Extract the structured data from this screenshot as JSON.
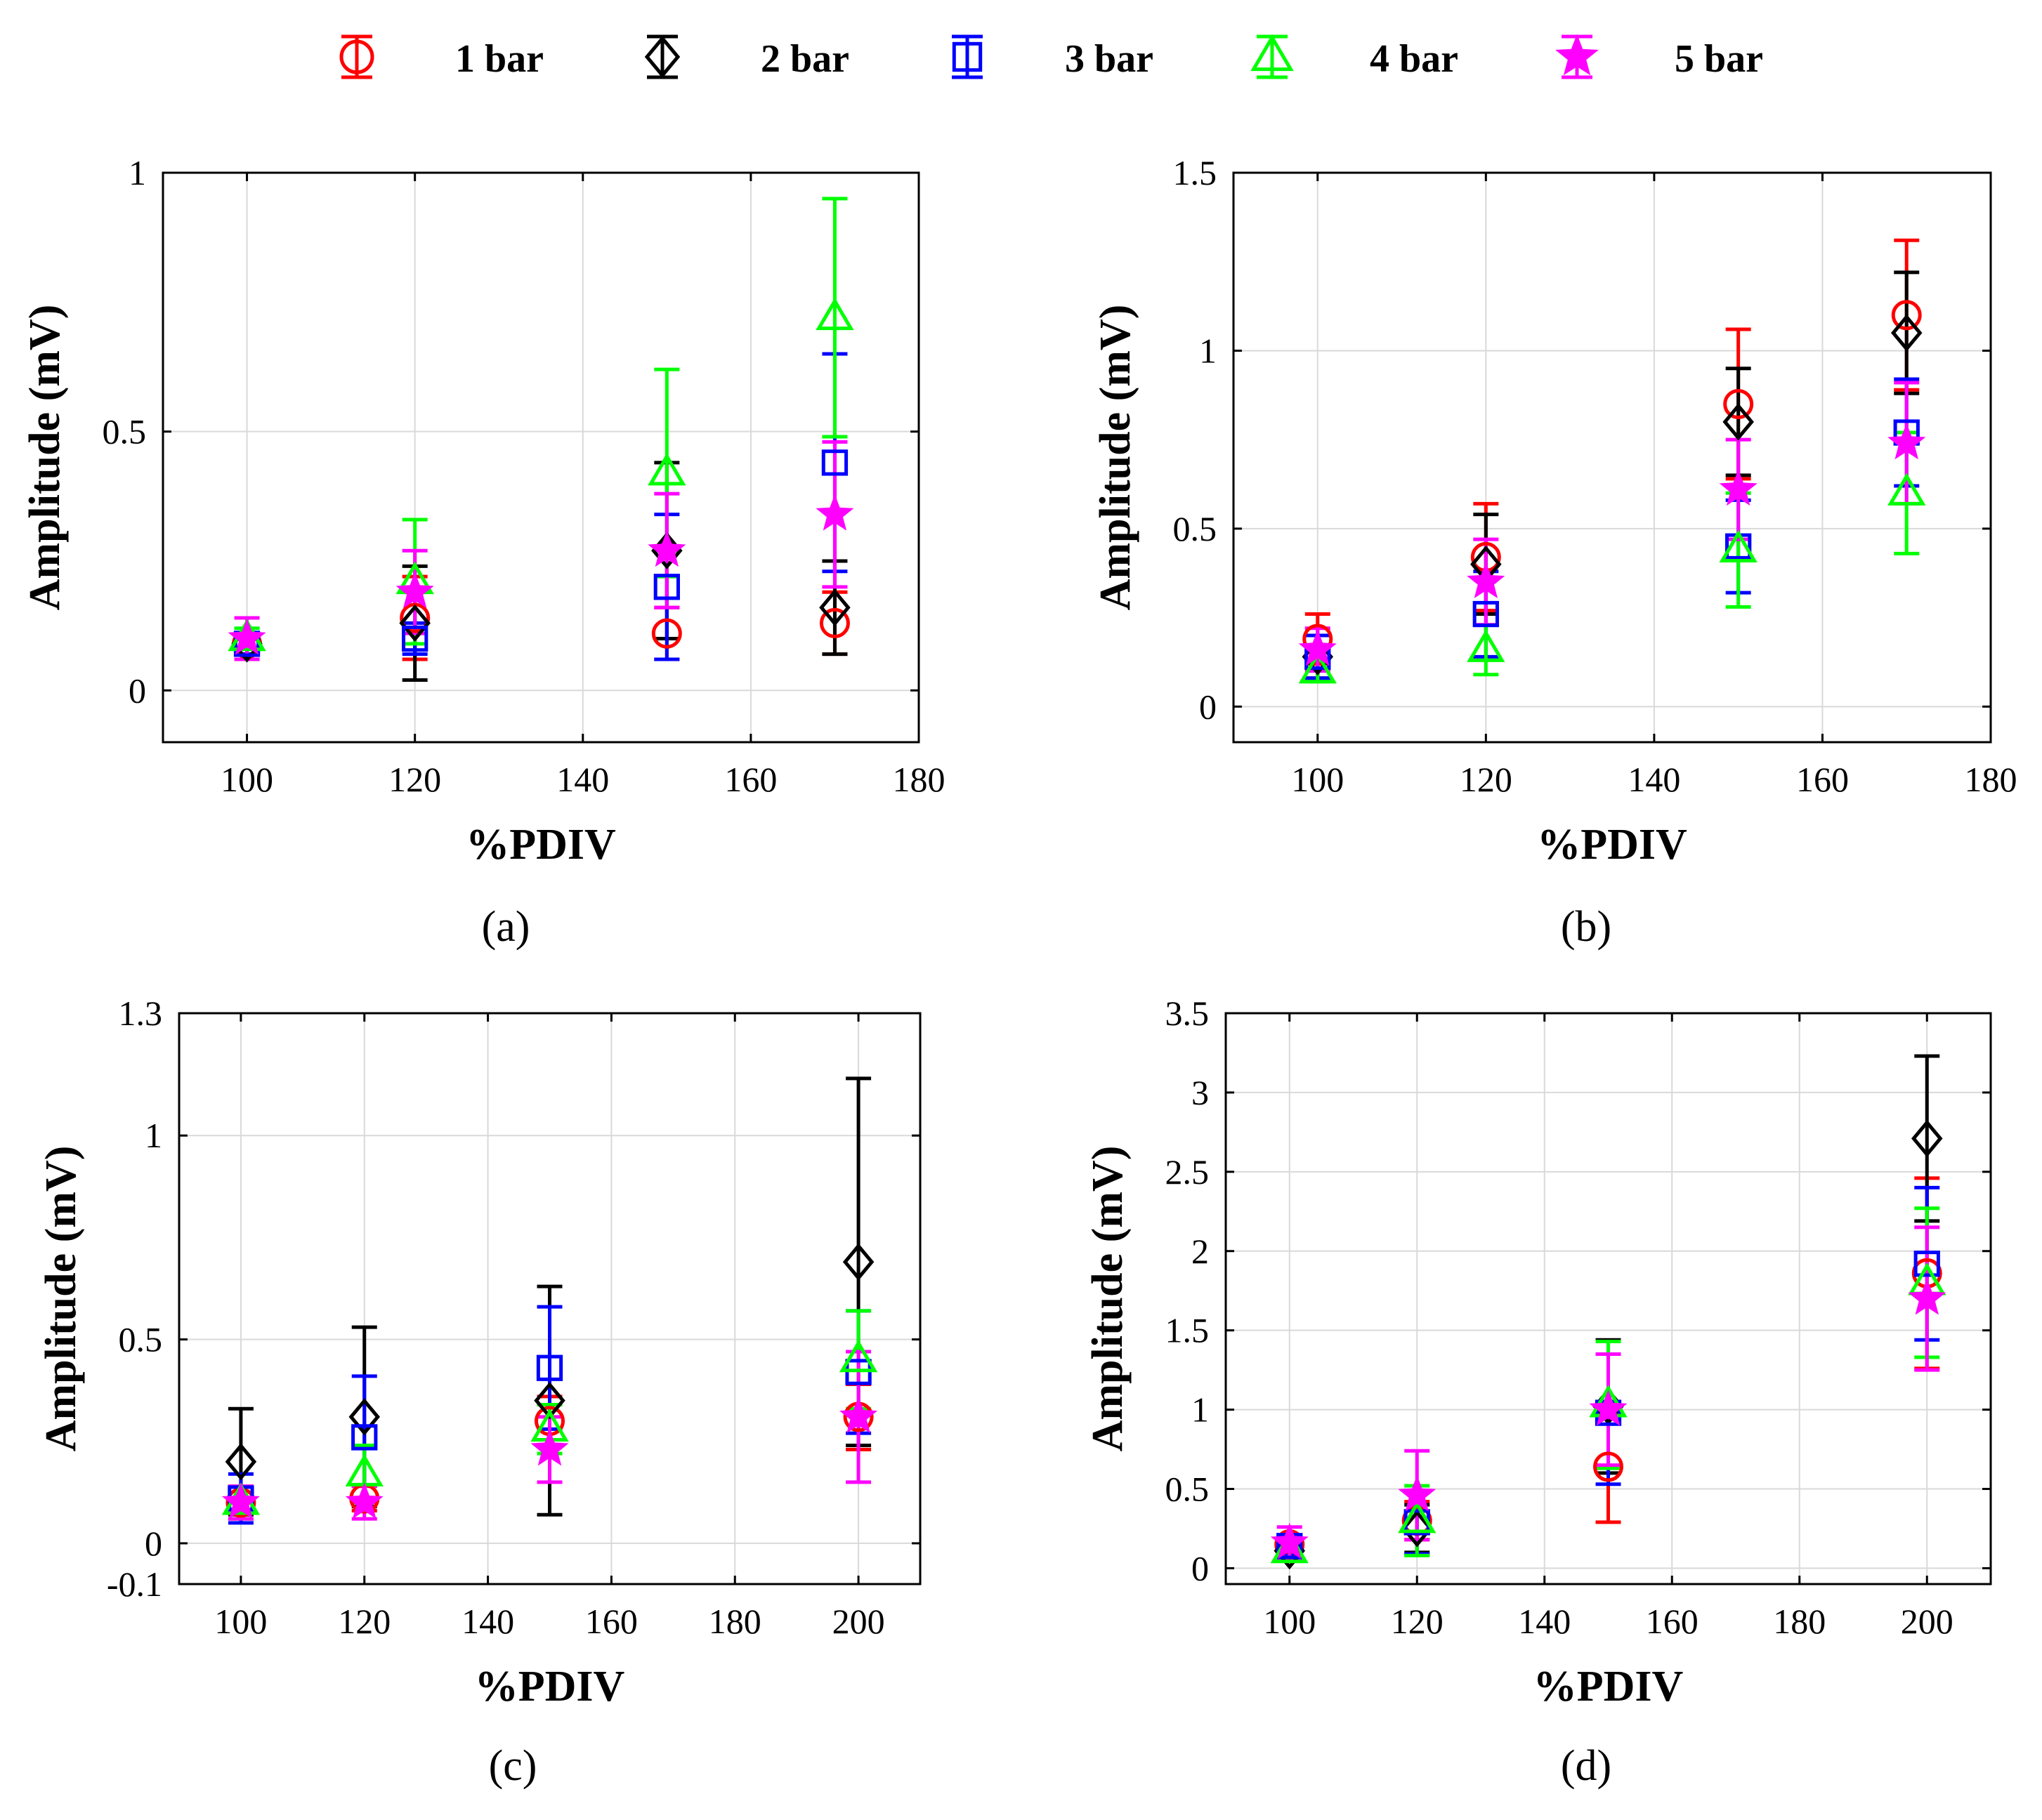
{
  "legend": [
    {
      "name": "1 bar",
      "color": "#ff0000",
      "marker": "circle"
    },
    {
      "name": "2 bar",
      "color": "#000000",
      "marker": "diamond"
    },
    {
      "name": "3 bar",
      "color": "#0000ff",
      "marker": "square"
    },
    {
      "name": "4 bar",
      "color": "#00ff00",
      "marker": "triangle"
    },
    {
      "name": "5 bar",
      "color": "#ff00ff",
      "marker": "star"
    }
  ],
  "chart_data": [
    {
      "type": "scatter",
      "panel_label": "(a)",
      "xlabel": "%PDIV",
      "ylabel": "Amplitude (mV)",
      "xlim": [
        90,
        180
      ],
      "ylim": [
        -0.1,
        1
      ],
      "xticks": [
        100,
        120,
        140,
        160,
        180
      ],
      "xtick_labels": [
        "100",
        "120",
        "140",
        "160",
        "180"
      ],
      "yticks": [
        0,
        0.5,
        1
      ],
      "ytick_labels": [
        "0",
        "0.5",
        "1"
      ],
      "grid": true,
      "error_bars": true,
      "series": [
        {
          "name": "1 bar",
          "x": [
            100,
            120,
            150,
            170
          ],
          "y": [
            0.09,
            0.14,
            0.11,
            0.13
          ],
          "err": [
            0.02,
            0.08,
            0.05,
            0.06
          ]
        },
        {
          "name": "2 bar",
          "x": [
            100,
            120,
            150,
            170
          ],
          "y": [
            0.09,
            0.13,
            0.27,
            0.16
          ],
          "err": [
            0.02,
            0.11,
            0.17,
            0.09
          ]
        },
        {
          "name": "3 bar",
          "x": [
            100,
            120,
            150,
            170
          ],
          "y": [
            0.09,
            0.1,
            0.2,
            0.44
          ],
          "err": [
            0.02,
            0.03,
            0.14,
            0.21
          ]
        },
        {
          "name": "4 bar",
          "x": [
            100,
            120,
            150,
            170
          ],
          "y": [
            0.1,
            0.21,
            0.42,
            0.72
          ],
          "err": [
            0.02,
            0.12,
            0.2,
            0.23
          ]
        },
        {
          "name": "5 bar",
          "x": [
            100,
            120,
            150,
            170
          ],
          "y": [
            0.1,
            0.19,
            0.27,
            0.34
          ],
          "err": [
            0.04,
            0.08,
            0.11,
            0.14
          ]
        }
      ]
    },
    {
      "type": "scatter",
      "panel_label": "(b)",
      "xlabel": "%PDIV",
      "ylabel": "Amplitude (mV)",
      "xlim": [
        90,
        180
      ],
      "ylim": [
        -0.1,
        1.5
      ],
      "xticks": [
        100,
        120,
        140,
        160,
        180
      ],
      "xtick_labels": [
        "100",
        "120",
        "140",
        "160",
        "180"
      ],
      "yticks": [
        0,
        0.5,
        1,
        1.5
      ],
      "ytick_labels": [
        "0",
        "0.5",
        "1",
        "1.5"
      ],
      "grid": true,
      "error_bars": true,
      "series": [
        {
          "name": "1 bar",
          "x": [
            100,
            120,
            150,
            170
          ],
          "y": [
            0.19,
            0.42,
            0.85,
            1.1
          ],
          "err": [
            0.07,
            0.15,
            0.21,
            0.21
          ]
        },
        {
          "name": "2 bar",
          "x": [
            100,
            120,
            150,
            170
          ],
          "y": [
            0.14,
            0.4,
            0.8,
            1.05
          ],
          "err": [
            0.06,
            0.14,
            0.15,
            0.17
          ]
        },
        {
          "name": "3 bar",
          "x": [
            100,
            120,
            150,
            170
          ],
          "y": [
            0.14,
            0.26,
            0.45,
            0.77
          ],
          "err": [
            0.06,
            0.12,
            0.13,
            0.15
          ]
        },
        {
          "name": "4 bar",
          "x": [
            100,
            120,
            150,
            170
          ],
          "y": [
            0.1,
            0.16,
            0.44,
            0.6
          ],
          "err": [
            0.03,
            0.07,
            0.16,
            0.17
          ]
        },
        {
          "name": "5 bar",
          "x": [
            100,
            120,
            150,
            170
          ],
          "y": [
            0.16,
            0.35,
            0.61,
            0.74
          ],
          "err": [
            0.06,
            0.12,
            0.14,
            0.17
          ]
        }
      ]
    },
    {
      "type": "scatter",
      "panel_label": "(c)",
      "xlabel": "%PDIV",
      "ylabel": "Amplitude (mV)",
      "xlim": [
        90,
        210
      ],
      "ylim": [
        -0.1,
        1.3
      ],
      "xticks": [
        100,
        120,
        140,
        160,
        180,
        200
      ],
      "xtick_labels": [
        "100",
        "120",
        "140",
        "160",
        "180",
        "200"
      ],
      "yticks": [
        -0.1,
        0,
        0.5,
        1,
        1.3
      ],
      "ytick_labels": [
        "-0.1",
        "0",
        "0.5",
        "1",
        "1.3"
      ],
      "grid": true,
      "error_bars": true,
      "series": [
        {
          "name": "1 bar",
          "x": [
            100,
            120,
            150,
            200
          ],
          "y": [
            0.1,
            0.11,
            0.3,
            0.31
          ],
          "err": [
            0.04,
            0.03,
            0.06,
            0.08
          ]
        },
        {
          "name": "2 bar",
          "x": [
            100,
            120,
            150,
            200
          ],
          "y": [
            0.2,
            0.31,
            0.35,
            0.69
          ],
          "err": [
            0.13,
            0.22,
            0.28,
            0.45
          ]
        },
        {
          "name": "3 bar",
          "x": [
            100,
            120,
            150,
            200
          ],
          "y": [
            0.11,
            0.26,
            0.43,
            0.42
          ],
          "err": [
            0.06,
            0.15,
            0.15,
            0.15
          ]
        },
        {
          "name": "4 bar",
          "x": [
            100,
            120,
            150,
            200
          ],
          "y": [
            0.1,
            0.17,
            0.28,
            0.45
          ],
          "err": [
            0.04,
            0.07,
            0.06,
            0.12
          ]
        },
        {
          "name": "5 bar",
          "x": [
            100,
            120,
            150,
            200
          ],
          "y": [
            0.1,
            0.1,
            0.23,
            0.31
          ],
          "err": [
            0.04,
            0.04,
            0.08,
            0.16
          ]
        }
      ]
    },
    {
      "type": "scatter",
      "panel_label": "(d)",
      "xlabel": "%PDIV",
      "ylabel": "Amplitude (mV)",
      "xlim": [
        90,
        210
      ],
      "ylim": [
        -0.1,
        3.5
      ],
      "xticks": [
        100,
        120,
        140,
        160,
        180,
        200
      ],
      "xtick_labels": [
        "100",
        "120",
        "140",
        "160",
        "180",
        "200"
      ],
      "yticks": [
        0,
        0.5,
        1,
        1.5,
        2,
        2.5,
        3,
        3.5
      ],
      "ytick_labels": [
        "0",
        "0.5",
        "1",
        "1.5",
        "2",
        "2.5",
        "3",
        "3.5"
      ],
      "grid": true,
      "error_bars": true,
      "series": [
        {
          "name": "1 bar",
          "x": [
            100,
            120,
            150,
            200
          ],
          "y": [
            0.15,
            0.3,
            0.64,
            1.86
          ],
          "err": [
            0.06,
            0.12,
            0.35,
            0.6
          ]
        },
        {
          "name": "2 bar",
          "x": [
            100,
            120,
            150,
            200
          ],
          "y": [
            0.11,
            0.25,
            1.02,
            2.71
          ],
          "err": [
            0.05,
            0.15,
            0.42,
            0.52
          ]
        },
        {
          "name": "3 bar",
          "x": [
            100,
            120,
            150,
            200
          ],
          "y": [
            0.14,
            0.29,
            0.98,
            1.92
          ],
          "err": [
            0.06,
            0.2,
            0.45,
            0.48
          ]
        },
        {
          "name": "4 bar",
          "x": [
            100,
            120,
            150,
            200
          ],
          "y": [
            0.11,
            0.3,
            1.03,
            1.8
          ],
          "err": [
            0.05,
            0.22,
            0.4,
            0.47
          ]
        },
        {
          "name": "5 bar",
          "x": [
            100,
            120,
            150,
            200
          ],
          "y": [
            0.16,
            0.46,
            1.0,
            1.7
          ],
          "err": [
            0.1,
            0.28,
            0.35,
            0.45
          ]
        }
      ]
    }
  ]
}
